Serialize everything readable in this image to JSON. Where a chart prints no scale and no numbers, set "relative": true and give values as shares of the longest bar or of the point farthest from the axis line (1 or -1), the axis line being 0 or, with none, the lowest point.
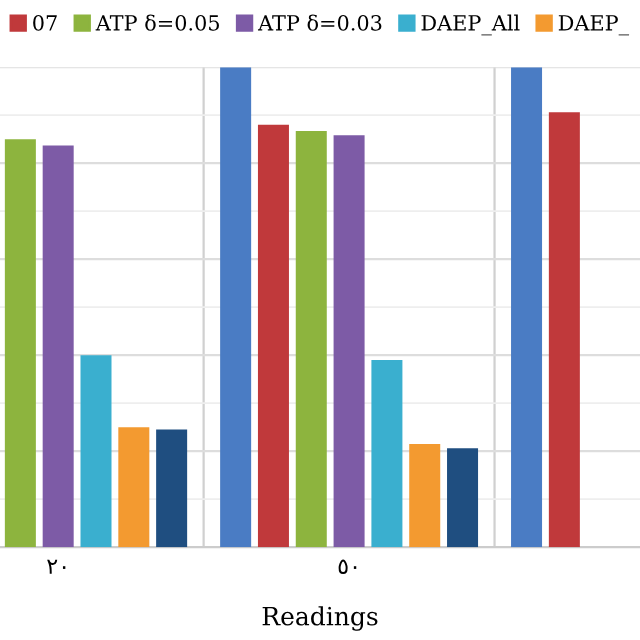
{
  "chart_data": {
    "type": "bar",
    "relative": true,
    "xlabel": "Readings",
    "categories": [
      "٢٠",
      "٥٠",
      null
    ],
    "series": [
      {
        "color": "#4a7cc4",
        "values": [
          null,
          1,
          1
        ]
      },
      {
        "name": "07",
        "color": "#c0393b",
        "values": [
          null,
          0.88,
          0.906
        ]
      },
      {
        "name": "ATP δ=0.05",
        "color": "#8db43e",
        "values": [
          0.85,
          0.867,
          null
        ]
      },
      {
        "name": "ATP δ=0.03",
        "color": "#7d5ba6",
        "values": [
          0.837,
          0.858,
          null
        ]
      },
      {
        "name": "DAEP_All",
        "color": "#3aafcf",
        "values": [
          0.4,
          0.39,
          null
        ]
      },
      {
        "name": "DAEP_",
        "color": "#f39a30",
        "values": [
          0.25,
          0.215,
          null
        ]
      },
      {
        "color": "#1f4e80",
        "values": [
          0.245,
          0.206,
          null
        ]
      }
    ],
    "grid": "y",
    "legend": "top"
  }
}
